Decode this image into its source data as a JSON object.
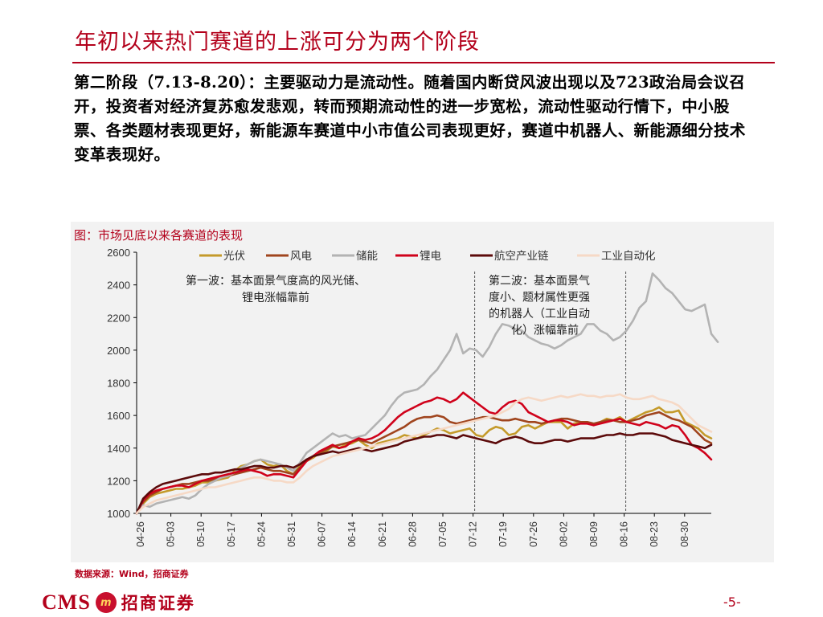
{
  "slide": {
    "title": "年初以来热门赛道的上涨可分为两个阶段",
    "body": "第二阶段（7.13-8.20）：主要驱动力是流动性。随着国内断贷风波出现以及723政治局会议召开，投资者对经济复苏愈发悲观，转而预期流动性的进一步宽松，流动性驱动行情下，中小股票、各类题材表现更好，新能源车赛道中小市值公司表现更好，赛道中机器人、新能源细分技术变革表现好。",
    "chart_caption": "图：市场见底以来各赛道的表现",
    "source": "数据来源：Wind，招商证券",
    "logo_cms": "CMS",
    "logo_mark": "m",
    "logo_cn": "招商证券",
    "page_number": "-5-"
  },
  "chart_data": {
    "type": "line",
    "ylim": [
      1000,
      2600
    ],
    "yticks": [
      1000,
      1200,
      1400,
      1600,
      1800,
      2000,
      2200,
      2400,
      2600
    ],
    "x_tick_labels": [
      "04-26",
      "05-03",
      "05-10",
      "05-17",
      "05-24",
      "05-31",
      "06-07",
      "06-14",
      "06-21",
      "06-28",
      "07-05",
      "07-12",
      "07-19",
      "07-26",
      "08-02",
      "08-09",
      "08-16",
      "08-23",
      "08-30"
    ],
    "grid": false,
    "legend_position": "top",
    "annotations": [
      {
        "lines": [
          "第一波：基本面景气度高的风光储、",
          "锂电涨幅靠前"
        ]
      },
      {
        "lines": [
          "第二波：基本面景气",
          "度小、题材属性更强",
          "的机器人（工业自动",
          "化）涨幅靠前"
        ]
      }
    ],
    "vlines_at_tick": [
      "07-12",
      "08-16"
    ],
    "series": [
      {
        "name": "光伏",
        "color": "#c49a2a",
        "values": [
          1000,
          1060,
          1100,
          1120,
          1130,
          1140,
          1150,
          1150,
          1160,
          1170,
          1190,
          1190,
          1200,
          1210,
          1220,
          1260,
          1290,
          1300,
          1320,
          1330,
          1300,
          1290,
          1300,
          1260,
          1240,
          1290,
          1320,
          1340,
          1370,
          1380,
          1410,
          1400,
          1420,
          1430,
          1450,
          1420,
          1400,
          1430,
          1440,
          1450,
          1460,
          1480,
          1470,
          1460,
          1480,
          1500,
          1520,
          1510,
          1490,
          1500,
          1510,
          1520,
          1480,
          1470,
          1510,
          1530,
          1520,
          1480,
          1490,
          1530,
          1540,
          1520,
          1540,
          1560,
          1560,
          1560,
          1520,
          1550,
          1560,
          1560,
          1540,
          1560,
          1580,
          1570,
          1590,
          1560,
          1580,
          1600,
          1620,
          1630,
          1650,
          1620,
          1620,
          1630,
          1560,
          1540,
          1520,
          1480,
          1460
        ]
      },
      {
        "name": "风电",
        "color": "#a0451e",
        "values": [
          1000,
          1070,
          1110,
          1130,
          1150,
          1160,
          1170,
          1180,
          1180,
          1190,
          1200,
          1200,
          1210,
          1220,
          1230,
          1240,
          1250,
          1260,
          1270,
          1280,
          1270,
          1260,
          1260,
          1250,
          1240,
          1280,
          1320,
          1350,
          1370,
          1390,
          1410,
          1420,
          1430,
          1440,
          1450,
          1440,
          1430,
          1450,
          1470,
          1490,
          1510,
          1530,
          1560,
          1580,
          1590,
          1590,
          1600,
          1590,
          1560,
          1550,
          1560,
          1570,
          1580,
          1590,
          1590,
          1580,
          1570,
          1570,
          1580,
          1570,
          1560,
          1560,
          1550,
          1560,
          1570,
          1580,
          1580,
          1570,
          1560,
          1560,
          1550,
          1560,
          1570,
          1570,
          1560,
          1560,
          1570,
          1580,
          1600,
          1610,
          1620,
          1600,
          1580,
          1570,
          1550,
          1530,
          1490,
          1450,
          1430
        ]
      },
      {
        "name": "储能",
        "color": "#b3b3b3",
        "values": [
          1000,
          1050,
          1040,
          1060,
          1070,
          1080,
          1090,
          1100,
          1090,
          1110,
          1150,
          1180,
          1200,
          1220,
          1230,
          1250,
          1280,
          1300,
          1320,
          1330,
          1320,
          1310,
          1300,
          1280,
          1260,
          1310,
          1370,
          1400,
          1430,
          1460,
          1490,
          1470,
          1480,
          1460,
          1470,
          1480,
          1520,
          1560,
          1600,
          1660,
          1710,
          1740,
          1750,
          1760,
          1790,
          1840,
          1880,
          1940,
          2000,
          2100,
          1980,
          2010,
          2000,
          1960,
          2020,
          2100,
          2160,
          2150,
          2130,
          2120,
          2080,
          2060,
          2040,
          2030,
          2010,
          2030,
          2060,
          2080,
          2100,
          2160,
          2160,
          2120,
          2100,
          2060,
          2080,
          2120,
          2180,
          2260,
          2300,
          2470,
          2430,
          2380,
          2350,
          2300,
          2250,
          2240,
          2260,
          2280,
          2100,
          2050
        ]
      },
      {
        "name": "锂电",
        "color": "#d0021b",
        "values": [
          1000,
          1080,
          1120,
          1140,
          1150,
          1160,
          1170,
          1170,
          1160,
          1180,
          1200,
          1210,
          1220,
          1230,
          1240,
          1250,
          1260,
          1270,
          1260,
          1250,
          1230,
          1240,
          1240,
          1230,
          1220,
          1270,
          1320,
          1350,
          1380,
          1400,
          1420,
          1400,
          1410,
          1440,
          1460,
          1450,
          1460,
          1480,
          1510,
          1550,
          1590,
          1620,
          1640,
          1660,
          1680,
          1690,
          1710,
          1700,
          1680,
          1700,
          1740,
          1710,
          1680,
          1650,
          1620,
          1610,
          1650,
          1680,
          1690,
          1670,
          1620,
          1600,
          1580,
          1560,
          1570,
          1570,
          1560,
          1540,
          1550,
          1550,
          1540,
          1550,
          1560,
          1570,
          1580,
          1560,
          1550,
          1540,
          1560,
          1550,
          1540,
          1520,
          1540,
          1530,
          1480,
          1420,
          1400,
          1370,
          1330
        ]
      },
      {
        "name": "航空产业链",
        "color": "#5c0a0a",
        "values": [
          1000,
          1090,
          1130,
          1160,
          1180,
          1190,
          1200,
          1210,
          1220,
          1230,
          1240,
          1240,
          1250,
          1250,
          1260,
          1270,
          1270,
          1280,
          1290,
          1290,
          1280,
          1280,
          1290,
          1290,
          1280,
          1300,
          1330,
          1350,
          1360,
          1370,
          1380,
          1370,
          1380,
          1390,
          1400,
          1390,
          1380,
          1390,
          1400,
          1410,
          1420,
          1440,
          1450,
          1460,
          1470,
          1470,
          1480,
          1480,
          1470,
          1460,
          1480,
          1470,
          1460,
          1450,
          1440,
          1430,
          1450,
          1460,
          1470,
          1460,
          1440,
          1430,
          1430,
          1440,
          1450,
          1450,
          1440,
          1450,
          1460,
          1460,
          1460,
          1470,
          1480,
          1480,
          1490,
          1480,
          1480,
          1490,
          1490,
          1490,
          1480,
          1470,
          1450,
          1440,
          1430,
          1420,
          1410,
          1400,
          1420
        ]
      },
      {
        "name": "工业自动化",
        "color": "#f6d9c6",
        "values": [
          1000,
          1040,
          1060,
          1080,
          1090,
          1100,
          1110,
          1120,
          1130,
          1140,
          1150,
          1160,
          1160,
          1170,
          1180,
          1190,
          1200,
          1210,
          1220,
          1220,
          1210,
          1200,
          1200,
          1190,
          1190,
          1220,
          1260,
          1290,
          1310,
          1330,
          1350,
          1360,
          1370,
          1380,
          1390,
          1400,
          1410,
          1420,
          1430,
          1440,
          1450,
          1460,
          1470,
          1480,
          1490,
          1500,
          1510,
          1520,
          1530,
          1540,
          1550,
          1560,
          1570,
          1580,
          1590,
          1600,
          1620,
          1640,
          1680,
          1700,
          1710,
          1700,
          1690,
          1700,
          1710,
          1720,
          1710,
          1720,
          1730,
          1720,
          1720,
          1710,
          1720,
          1720,
          1730,
          1710,
          1700,
          1700,
          1710,
          1720,
          1700,
          1690,
          1680,
          1660,
          1620,
          1580,
          1540,
          1520,
          1500
        ]
      }
    ]
  }
}
